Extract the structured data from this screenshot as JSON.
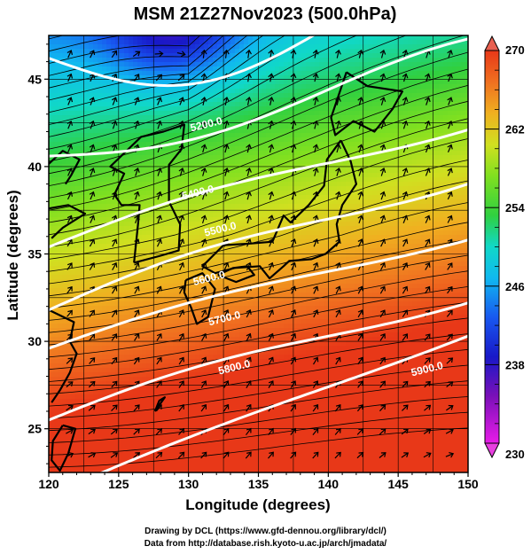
{
  "title": "MSM 21Z27Nov2023 (500.0hPa)",
  "x_axis": {
    "label": "Longitude (degrees)",
    "min": 120,
    "max": 150,
    "ticks": [
      "120",
      "125",
      "130",
      "135",
      "140",
      "145",
      "150"
    ]
  },
  "y_axis": {
    "label": "Latitude  (degrees)",
    "min": 22.5,
    "max": 47.5,
    "ticks": [
      "25",
      "30",
      "35",
      "40",
      "45"
    ]
  },
  "colorbar": {
    "min": 230,
    "max": 270,
    "labels": [
      "230",
      "238",
      "246",
      "254",
      "262",
      "270"
    ],
    "colors": [
      "#e81ce8",
      "#7a10b8",
      "#1818c8",
      "#1858f0",
      "#10b8f0",
      "#10d8c8",
      "#30d040",
      "#80e020",
      "#d0e020",
      "#f0b020",
      "#f07020",
      "#e83818"
    ]
  },
  "contours": [
    {
      "label": "5200.0"
    },
    {
      "label": "5400.0"
    },
    {
      "label": "5500.0"
    },
    {
      "label": "5600.0"
    },
    {
      "label": "5700.0"
    },
    {
      "label": "5800.0"
    },
    {
      "label": "5900.0"
    }
  ],
  "credits": {
    "line1": "Drawing by DCL (https://www.gfd-dennou.org/library/dcl/)",
    "line2": "Data from http://database.rish.kyoto-u.ac.jp/arch/jmadata/"
  }
}
